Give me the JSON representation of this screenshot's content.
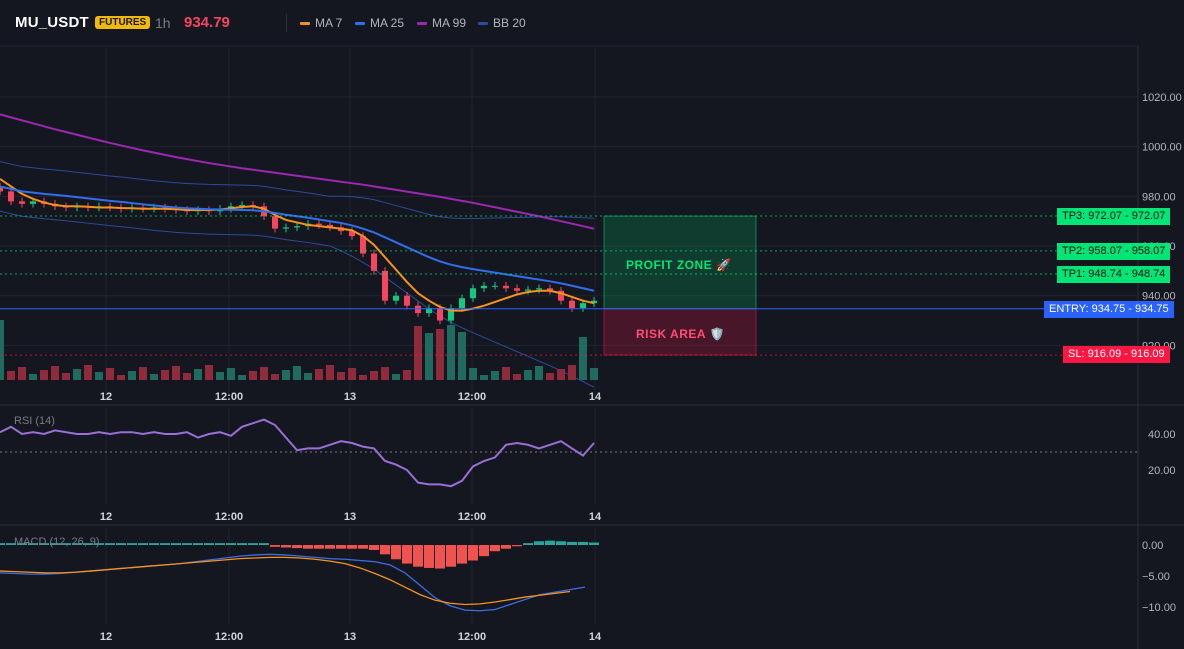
{
  "header": {
    "symbol": "MU_USDT",
    "badge": "FUTURES",
    "timeframe": "1h",
    "price": "934.79",
    "legend": [
      {
        "name": "MA 7",
        "color": "#f7931a"
      },
      {
        "name": "MA 25",
        "color": "#2f6fed"
      },
      {
        "name": "MA 99",
        "color": "#9c27b0"
      },
      {
        "name": "BB 20",
        "color": "#2b4a9c"
      }
    ]
  },
  "levels": {
    "tp3": "TP3: 972.07 - 972.07",
    "tp2": "TP2: 958.07 - 958.07",
    "tp1": "TP1: 948.74 - 948.74",
    "entry": "ENTRY: 934.75 - 934.75",
    "sl": "SL: 916.09 - 916.09"
  },
  "zones": {
    "profit": "PROFIT ZONE 🚀",
    "risk": "RISK AREA 🛡️"
  },
  "panels": {
    "rsi": "RSI (14)",
    "macd": "MACD (12, 26, 9)"
  },
  "chart_data": [
    {
      "type": "candlestick",
      "title": "MU_USDT 1h",
      "xlabel": "",
      "ylabel": "",
      "ylim": [
        910,
        1030
      ],
      "x_ticks": [
        "12",
        "12:00",
        "13",
        "12:00",
        "14"
      ],
      "y_ticks": [
        920.0,
        940.0,
        960.0,
        980.0,
        1000.0,
        1020.0
      ],
      "closes": [
        982,
        978,
        977,
        978,
        977,
        976,
        975.5,
        976,
        975.5,
        976,
        975.5,
        975,
        975.5,
        975,
        975.5,
        975,
        974.5,
        974,
        974.5,
        974,
        975,
        976,
        976.5,
        976,
        972,
        967,
        967.5,
        968,
        969,
        968.5,
        967.5,
        966,
        964,
        957,
        950,
        938,
        940,
        936,
        933,
        935,
        930,
        935,
        939,
        943,
        944,
        944,
        943,
        942,
        942.5,
        943,
        942,
        938,
        935,
        937,
        938
      ],
      "series_lines": [
        {
          "name": "MA 7",
          "values": [
            987,
            984,
            981,
            979,
            977.5,
            976.5,
            976,
            976,
            975.8,
            975.5,
            975.5,
            975.3,
            975.2,
            975,
            975,
            975,
            974.8,
            974.5,
            974.5,
            974.5,
            974.7,
            975.2,
            975.7,
            976,
            975,
            972.5,
            970.5,
            969.5,
            968.5,
            968,
            967.5,
            967,
            966.3,
            964,
            960.5,
            955.5,
            950.5,
            945.5,
            941,
            938,
            935.5,
            934,
            934,
            934.8,
            936,
            937.5,
            939,
            940.5,
            941.5,
            942,
            942,
            941,
            939.5,
            938,
            937
          ]
        },
        {
          "name": "MA 25",
          "values": [
            984,
            983,
            982,
            981.5,
            981,
            980.6,
            980.2,
            979.7,
            979.2,
            978.7,
            978.2,
            977.8,
            977.3,
            976.8,
            976.3,
            975.9,
            975.5,
            975.2,
            975,
            974.8,
            974.7,
            974.6,
            974.5,
            974.4,
            974,
            973.3,
            972.6,
            972,
            971.4,
            970.7,
            970,
            969.3,
            968.3,
            967,
            965.5,
            963.5,
            961.5,
            959.5,
            957.5,
            955.5,
            953.8,
            952.5,
            951.5,
            950.7,
            950,
            949.3,
            948.6,
            947.9,
            947.2,
            946.5,
            945.8,
            945,
            944,
            943,
            942
          ]
        },
        {
          "name": "MA 99",
          "values": [
            1013,
            1011.8,
            1010.6,
            1009.4,
            1008.2,
            1007,
            1005.9,
            1004.8,
            1003.7,
            1002.6,
            1001.5,
            1000.5,
            999.5,
            998.5,
            997.6,
            996.7,
            995.8,
            995,
            994.2,
            993.4,
            992.7,
            992,
            991.3,
            990.7,
            990.1,
            989.5,
            988.9,
            988.3,
            987.7,
            987.1,
            986.5,
            985.9,
            985.3,
            984.7,
            984,
            983.3,
            982.6,
            981.9,
            981.2,
            980.5,
            979.8,
            979,
            978.2,
            977.4,
            976.5,
            975.6,
            974.7,
            973.8,
            972.9,
            972,
            971,
            970,
            969,
            968,
            967
          ]
        }
      ],
      "annotations": [
        "TP3: 972.07",
        "TP2: 958.07",
        "TP1: 948.74",
        "ENTRY: 934.75",
        "SL: 916.09"
      ]
    },
    {
      "type": "line",
      "title": "RSI (14)",
      "xlabel": "",
      "ylabel": "",
      "ylim": [
        10,
        55
      ],
      "y_ticks": [
        20.0,
        40.0
      ],
      "reference_line": 30,
      "series": [
        {
          "name": "",
          "values": [
            41,
            44,
            40,
            41,
            40,
            42,
            41,
            40,
            40,
            41,
            40,
            41,
            41,
            40,
            41,
            40,
            40,
            41,
            38,
            40,
            41,
            39,
            44,
            46,
            48,
            45,
            38,
            31,
            32,
            32,
            34,
            36,
            35,
            33,
            32,
            25,
            23,
            20,
            13,
            12,
            12,
            11,
            14,
            22,
            25,
            27,
            34,
            35,
            34,
            32,
            34,
            36,
            32,
            28,
            35
          ]
        }
      ]
    },
    {
      "type": "bar",
      "title": "MACD (12, 26, 9)",
      "xlabel": "",
      "ylabel": "",
      "ylim": [
        -12,
        2
      ],
      "y_ticks": [
        0.0,
        -5.0,
        -10.0
      ],
      "series": [
        {
          "name": "",
          "values": [
            0.3,
            0.3,
            0.3,
            0.3,
            0.3,
            0.3,
            0.3,
            0.3,
            0.3,
            0.3,
            0.3,
            0.3,
            0.3,
            0.3,
            0.3,
            0.3,
            0.3,
            0.3,
            0.3,
            0.3,
            0.3,
            0.3,
            0.3,
            0.3,
            0.3,
            -0.3,
            -0.4,
            -0.5,
            -0.6,
            -0.6,
            -0.6,
            -0.6,
            -0.6,
            -0.6,
            -0.8,
            -1.5,
            -2.3,
            -3,
            -3.5,
            -3.7,
            -3.8,
            -3.5,
            -3,
            -2.5,
            -1.8,
            -1,
            -0.6,
            -0.2,
            0.3,
            0.6,
            0.7,
            0.6,
            0.5,
            0.5,
            0.4
          ]
        },
        {
          "name": "",
          "values": [
            -4.5,
            -4.6,
            -4.7,
            -4.7,
            -4.6,
            -4.4,
            -4.2,
            -4,
            -3.8,
            -3.6,
            -3.4,
            -3.2,
            -3,
            -2.7,
            -2.4,
            -2.1,
            -1.8,
            -1.6,
            -1.5,
            -1.6,
            -1.8,
            -2,
            -2.2,
            -2.3,
            -2.5,
            -2.7,
            -3.2,
            -4.5,
            -6.5,
            -8.5,
            -9.8,
            -10.5,
            -10.6,
            -10.4,
            -9.6,
            -8.8,
            -8,
            -7.6,
            -7.2,
            -6.8
          ]
        },
        {
          "name": "",
          "values": [
            -4.2,
            -4.3,
            -4.4,
            -4.5,
            -4.5,
            -4.4,
            -4.2,
            -4,
            -3.8,
            -3.6,
            -3.4,
            -3.2,
            -3,
            -2.8,
            -2.6,
            -2.4,
            -2.2,
            -2.1,
            -2,
            -2,
            -2.1,
            -2.3,
            -2.6,
            -3,
            -3.7,
            -4.6,
            -5.6,
            -6.8,
            -8,
            -8.9,
            -9.4,
            -9.6,
            -9.5,
            -9.2,
            -8.8,
            -8.4,
            -8.1,
            -7.8,
            -7.5
          ]
        }
      ]
    }
  ]
}
